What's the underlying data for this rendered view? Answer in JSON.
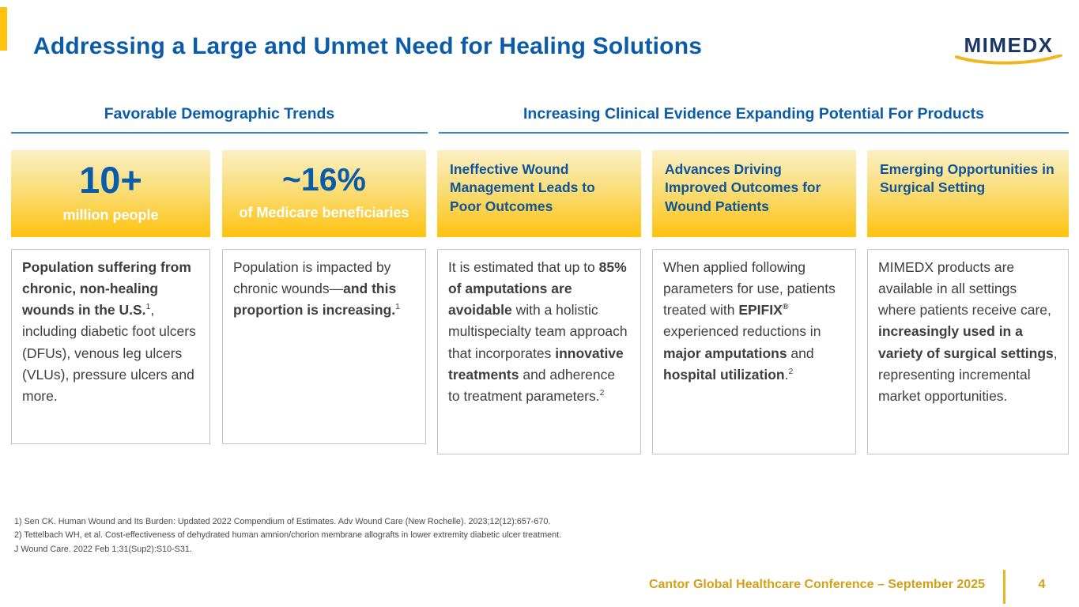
{
  "slide": {
    "title": "Addressing a Large and Unmet Need for Healing Solutions",
    "logo_text": "MIMEDX",
    "footer_text": "Cantor Global Healthcare Conference – September 2025",
    "page_number": "4"
  },
  "section_headers": {
    "left": "Favorable Demographic Trends",
    "right": "Increasing Clinical Evidence Expanding Potential For Products"
  },
  "columns": [
    {
      "stat_value": "10+",
      "stat_label": "million people",
      "body": [
        {
          "t": "Population suffering from chronic, non-healing wounds in the U.S.",
          "b": true
        },
        {
          "t": "1",
          "sup": true
        },
        {
          "t": ", including diabetic foot ulcers (DFUs), venous leg ulcers (VLUs), pressure ulcers and more."
        }
      ]
    },
    {
      "stat_value": "~16%",
      "stat_label": "of Medicare beneficiaries",
      "body": [
        {
          "t": "Population is impacted by chronic wounds—"
        },
        {
          "t": "and this proportion is increasing.",
          "b": true
        },
        {
          "t": "1",
          "sup": true
        }
      ]
    },
    {
      "header_title": "Ineffective Wound Management Leads to Poor Outcomes",
      "body": [
        {
          "t": "It is estimated that up to "
        },
        {
          "t": "85% of amputations are avoidable",
          "b": true
        },
        {
          "t": " with a holistic multispecialty team approach that incorporates "
        },
        {
          "t": "innovative treatments",
          "b": true
        },
        {
          "t": " and adherence to treatment parameters."
        },
        {
          "t": "2",
          "sup": true
        }
      ]
    },
    {
      "header_title": "Advances Driving Improved Outcomes for Wound Patients",
      "body": [
        {
          "t": "When applied following parameters for use, patients treated with "
        },
        {
          "t": "EPIFIX",
          "b": true
        },
        {
          "t": "®",
          "b": true,
          "sup": true
        },
        {
          "t": " experienced reductions in "
        },
        {
          "t": "major amputations",
          "b": true
        },
        {
          "t": " and "
        },
        {
          "t": "hospital utilization",
          "b": true
        },
        {
          "t": "."
        },
        {
          "t": "2",
          "sup": true
        }
      ]
    },
    {
      "header_title": "Emerging Opportunities in Surgical Setting",
      "body": [
        {
          "t": "MIMEDX products are available in all settings where patients receive care, "
        },
        {
          "t": "increasingly used in a variety of surgical settings",
          "b": true
        },
        {
          "t": ", representing incremental market opportunities."
        }
      ]
    }
  ],
  "footnotes": [
    "1) Sen CK. Human Wound and Its Burden: Updated 2022 Compendium of Estimates. Adv Wound Care (New Rochelle). 2023;12(12):657-670.",
    "2) Tettelbach WH, et al. Cost-effectiveness of dehydrated human amnion/chorion membrane allografts in lower extremity diabetic ulcer treatment. J Wound Care. 2022 Feb 1;31(Sup2):S10-S31."
  ],
  "colors": {
    "brand_blue": "#0B5CA8",
    "box_title_blue": "#0F5498",
    "logo_navy": "#1A3666",
    "gold": "#FFC20E",
    "footer_gold": "#D4A019",
    "card_border_gray": "#C4C4C4",
    "body_text_gray": "#3E3E3E"
  }
}
